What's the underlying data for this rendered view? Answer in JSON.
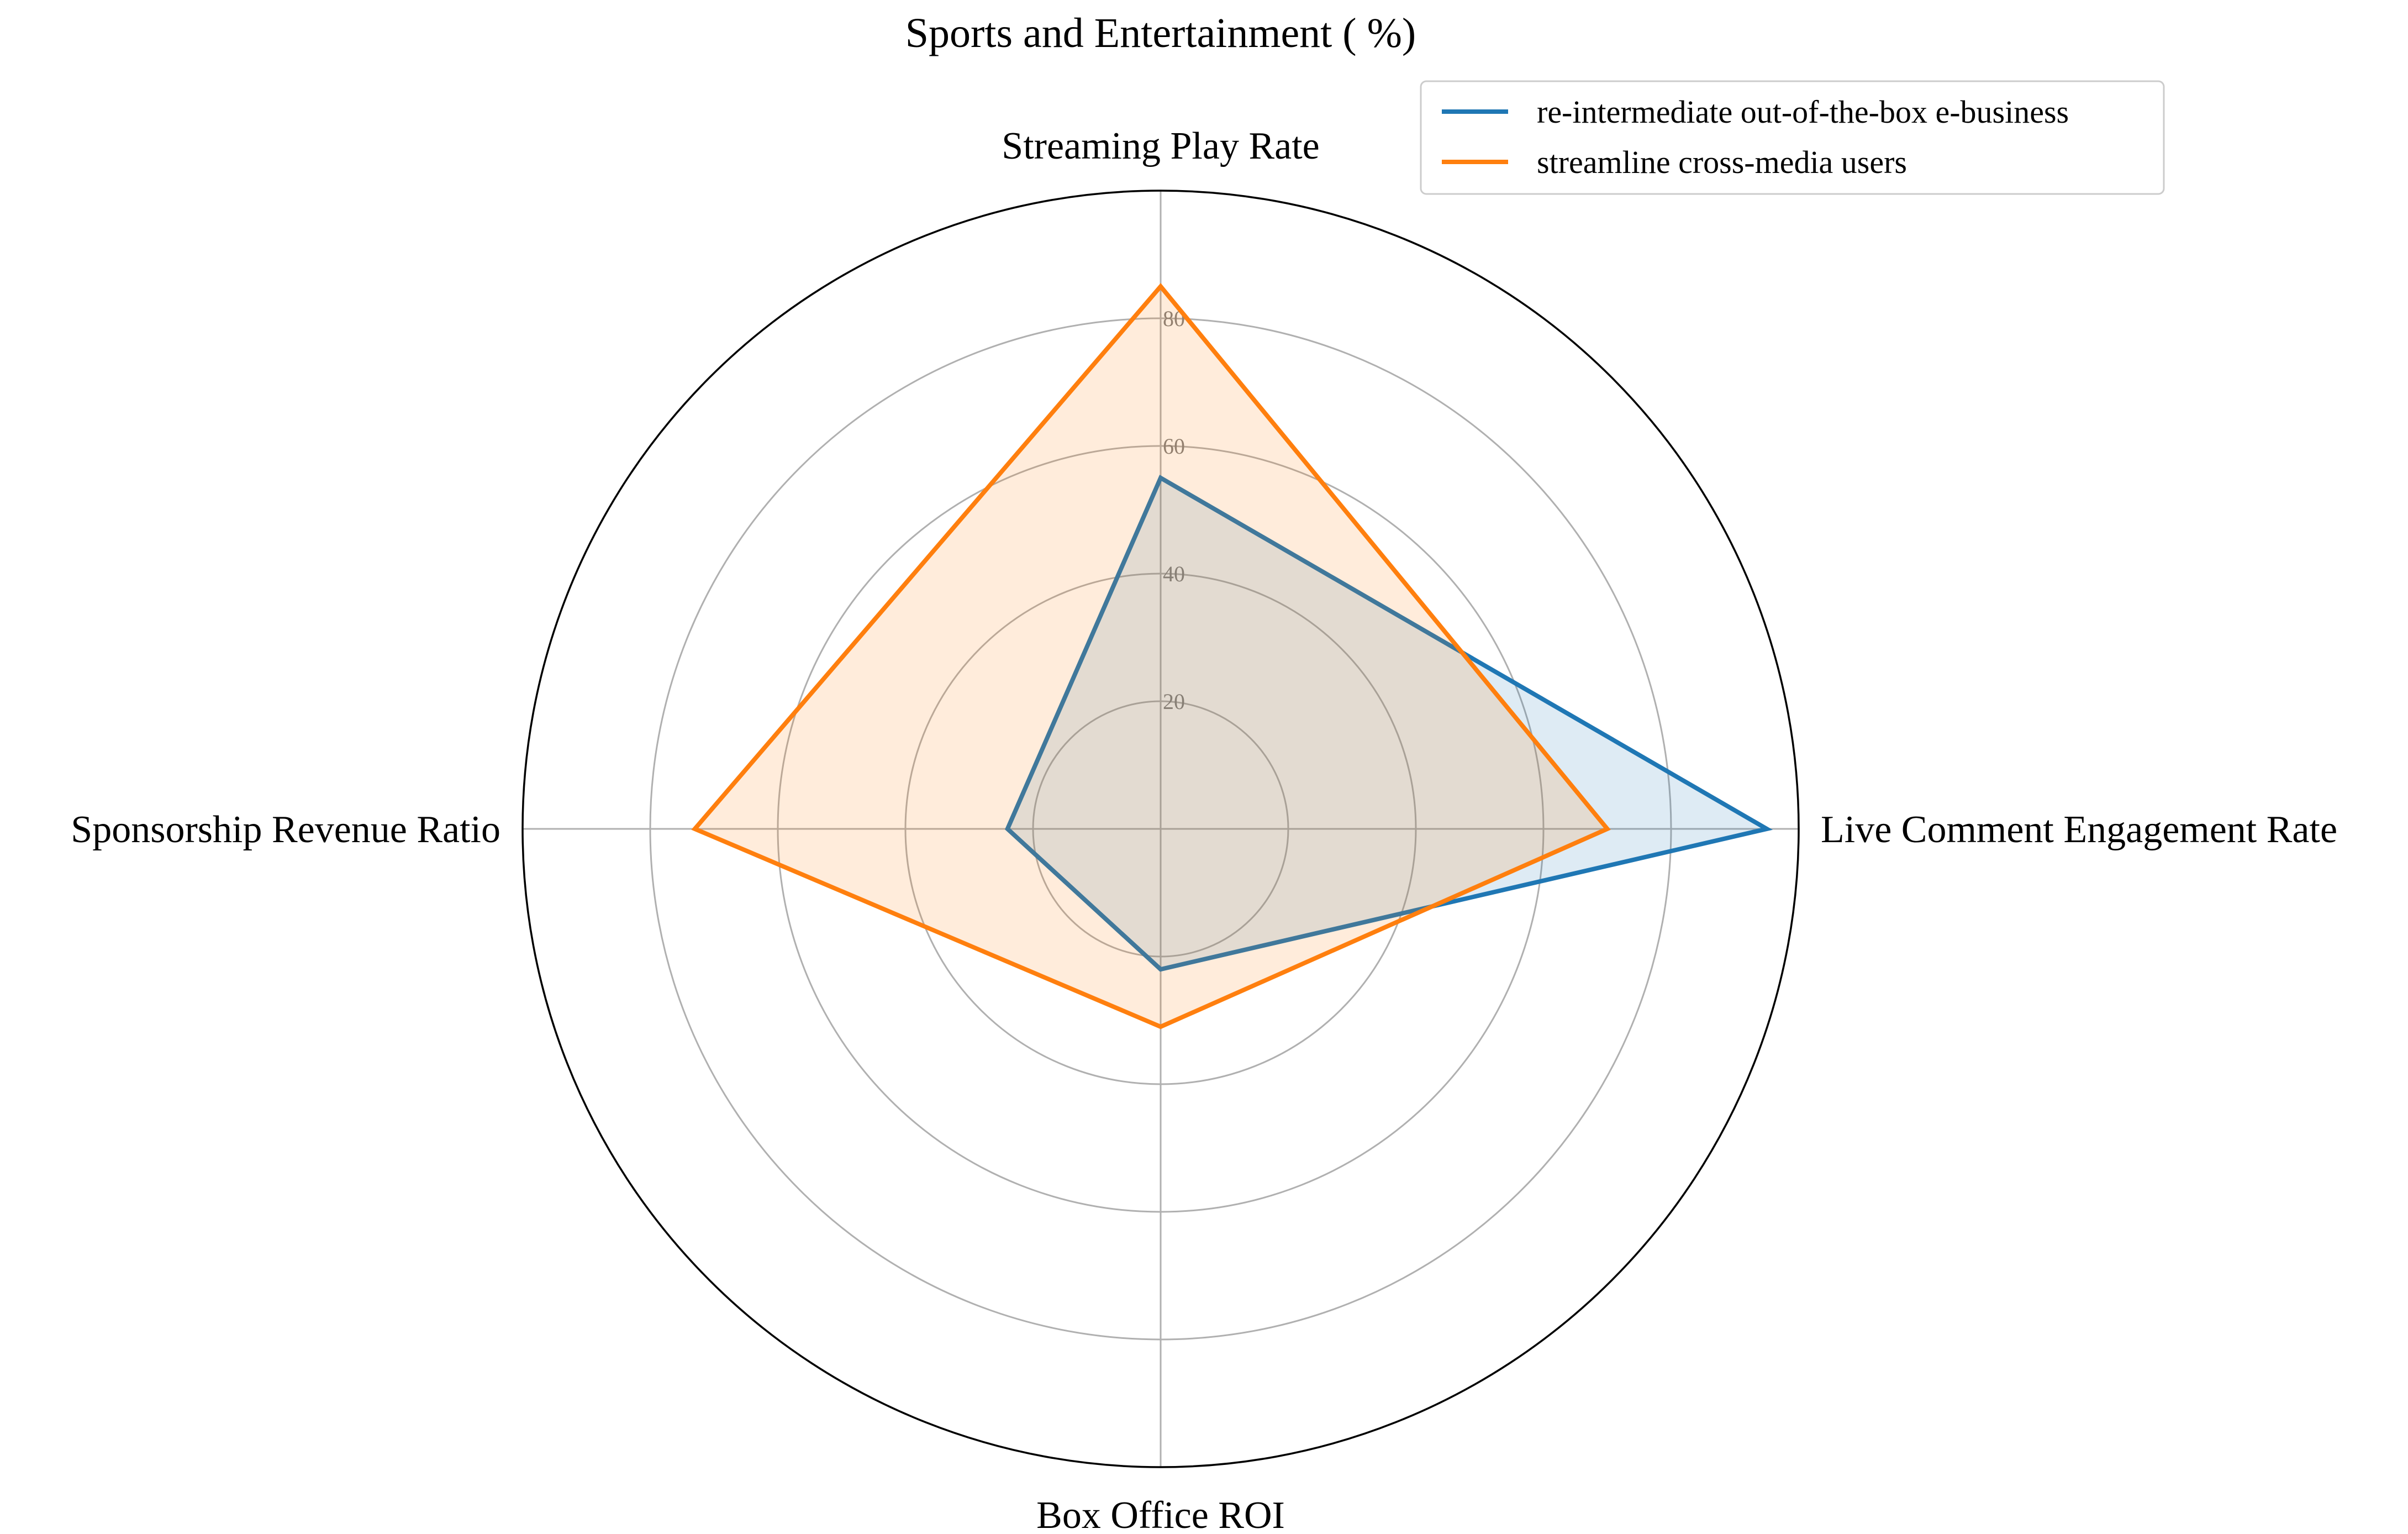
{
  "chart_data": {
    "type": "radar",
    "title": "Sports and Entertainment ( %)",
    "axes": [
      "Streaming Play Rate",
      "Live Comment Engagement Rate",
      "Box Office ROI",
      "Sponsorship Revenue Ratio"
    ],
    "r_range": [
      0,
      100
    ],
    "r_ticks": [
      20,
      40,
      60,
      80
    ],
    "grid": true,
    "legend_position": "top-right",
    "series": [
      {
        "name": "re-intermediate out-of-the-box e-business",
        "color": "#1f77b4",
        "values": [
          55,
          95,
          22,
          24
        ]
      },
      {
        "name": "streamline cross-media users",
        "color": "#ff7f0e",
        "values": [
          85,
          70,
          31,
          73
        ]
      }
    ]
  }
}
